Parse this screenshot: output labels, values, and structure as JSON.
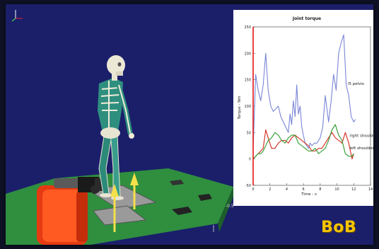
{
  "logo": {
    "text": "BoB",
    "color": "#f5c400"
  },
  "scene": {
    "background_color": "#1b1f6a",
    "floor_color": "#2f8f3f",
    "force_arrow_color": "#f4e04a",
    "axis_tick_label": "-0.5"
  },
  "chart_data": {
    "type": "line",
    "title": "Joint torque",
    "xlabel": "Time - s",
    "ylabel": "Torque - Nm",
    "xlim": [
      0,
      14
    ],
    "ylim": [
      -50,
      250
    ],
    "xticks": [
      "0",
      "2",
      "4",
      "6",
      "8",
      "10",
      "12",
      "14"
    ],
    "yticks": [
      "-50",
      "0",
      "50",
      "100",
      "150",
      "200",
      "250"
    ],
    "grid": false,
    "cursor_x": 0,
    "series": [
      {
        "name": "l5 pelvis",
        "color": "#7a86d6",
        "x": [
          0,
          0.3,
          0.6,
          0.9,
          1.2,
          1.5,
          1.8,
          2.1,
          2.4,
          2.7,
          3.0,
          3.3,
          3.6,
          3.9,
          4.2,
          4.4,
          4.6,
          4.8,
          5.0,
          5.2,
          5.4,
          5.6,
          5.8,
          6.0,
          6.2,
          6.4,
          6.6,
          6.8,
          7.0,
          7.3,
          7.6,
          8.0,
          8.3,
          8.6,
          9.0,
          9.3,
          9.6,
          9.9,
          10.2,
          10.5,
          10.8,
          11.1,
          11.4,
          11.7,
          12.0,
          12.2
        ],
        "y": [
          20,
          160,
          130,
          110,
          140,
          200,
          130,
          100,
          90,
          95,
          100,
          80,
          70,
          60,
          50,
          85,
          65,
          110,
          80,
          140,
          85,
          100,
          60,
          45,
          30,
          25,
          20,
          30,
          25,
          30,
          30,
          40,
          60,
          120,
          70,
          110,
          160,
          130,
          200,
          220,
          235,
          140,
          120,
          80,
          70,
          75
        ]
      },
      {
        "name": "right shoulder",
        "color": "#d32a1d",
        "x": [
          0,
          0.3,
          0.6,
          0.9,
          1.2,
          1.5,
          1.8,
          2.2,
          2.6,
          3.0,
          3.4,
          3.8,
          4.2,
          4.6,
          5.0,
          5.4,
          5.8,
          6.2,
          6.6,
          7.0,
          7.4,
          7.8,
          8.2,
          8.6,
          9.0,
          9.4,
          9.8,
          10.2,
          10.6,
          11.0,
          11.4,
          11.8,
          12.0
        ],
        "y": [
          0,
          5,
          10,
          15,
          20,
          55,
          40,
          20,
          20,
          30,
          35,
          35,
          30,
          40,
          45,
          40,
          35,
          30,
          25,
          15,
          15,
          20,
          20,
          30,
          40,
          50,
          40,
          35,
          30,
          50,
          30,
          0,
          10
        ]
      },
      {
        "name": "left shoulder",
        "color": "#2d9a2d",
        "x": [
          0,
          0.3,
          0.6,
          0.9,
          1.2,
          1.5,
          1.8,
          2.2,
          2.6,
          3.0,
          3.4,
          3.8,
          4.2,
          4.6,
          5.0,
          5.4,
          5.8,
          6.2,
          6.6,
          7.0,
          7.4,
          7.8,
          8.2,
          8.6,
          9.0,
          9.4,
          9.8,
          10.2,
          10.6,
          11.0,
          11.4,
          11.8,
          12.0
        ],
        "y": [
          0,
          5,
          10,
          10,
          15,
          25,
          35,
          40,
          50,
          45,
          35,
          30,
          40,
          45,
          45,
          30,
          25,
          20,
          15,
          15,
          20,
          10,
          15,
          20,
          35,
          55,
          65,
          45,
          35,
          10,
          5,
          5,
          10
        ]
      }
    ],
    "annotations": [
      {
        "text": "l5 pelvis",
        "x": 11.3,
        "y": 140
      },
      {
        "text": "right shoulder",
        "x": 11.5,
        "y": 42
      },
      {
        "text": "left shoulder",
        "x": 11.5,
        "y": 18
      }
    ]
  }
}
